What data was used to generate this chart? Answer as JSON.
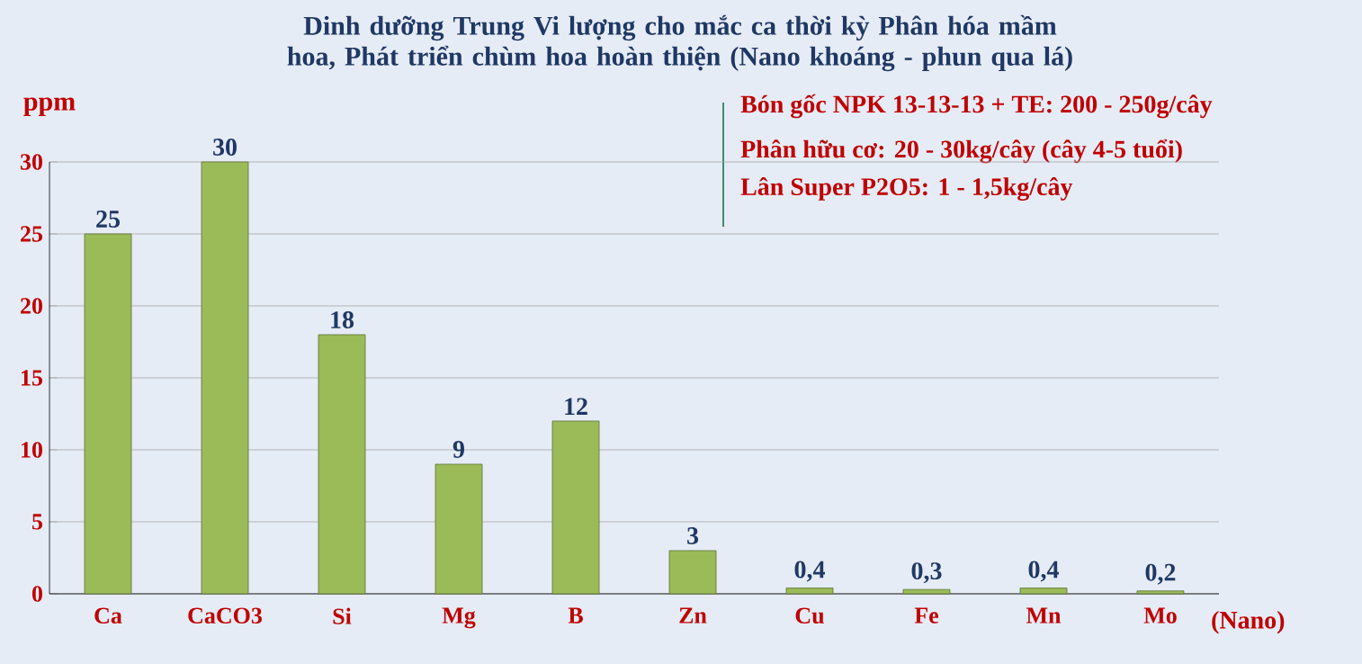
{
  "chart_data": {
    "type": "bar",
    "title": "Dinh dưỡng Trung Vi lượng cho mắc ca thời kỳ Phân hóa mầm hoa, Phát triển chùm hoa hoàn thiện (Nano khoáng - phun qua lá)",
    "ylabel": "ppm",
    "xlabel": "(Nano)",
    "categories": [
      "Ca",
      "CaCO3",
      "Si",
      "Mg",
      "B",
      "Zn",
      "Cu",
      "Fe",
      "Mn",
      "Mo"
    ],
    "values": [
      25,
      30,
      18,
      9,
      12,
      3,
      0.4,
      0.3,
      0.4,
      0.2
    ],
    "value_labels": [
      "25",
      "30",
      "18",
      "9",
      "12",
      "3",
      "0,4",
      "0,3",
      "0,4",
      "0,2"
    ],
    "color": "#9bbb59",
    "ylim": [
      0,
      30
    ],
    "yticks": [
      0,
      5,
      10,
      15,
      20,
      25,
      30
    ],
    "grid": "y",
    "annotations": [
      "Bón gốc NPK 13-13-13 + TE: 200 - 250g/cây",
      "Phân hữu cơ: 20 - 30kg/cây (cây 4-5 tuổi)",
      "Lân Super P2O5: 1 - 1,5kg/cây"
    ]
  }
}
